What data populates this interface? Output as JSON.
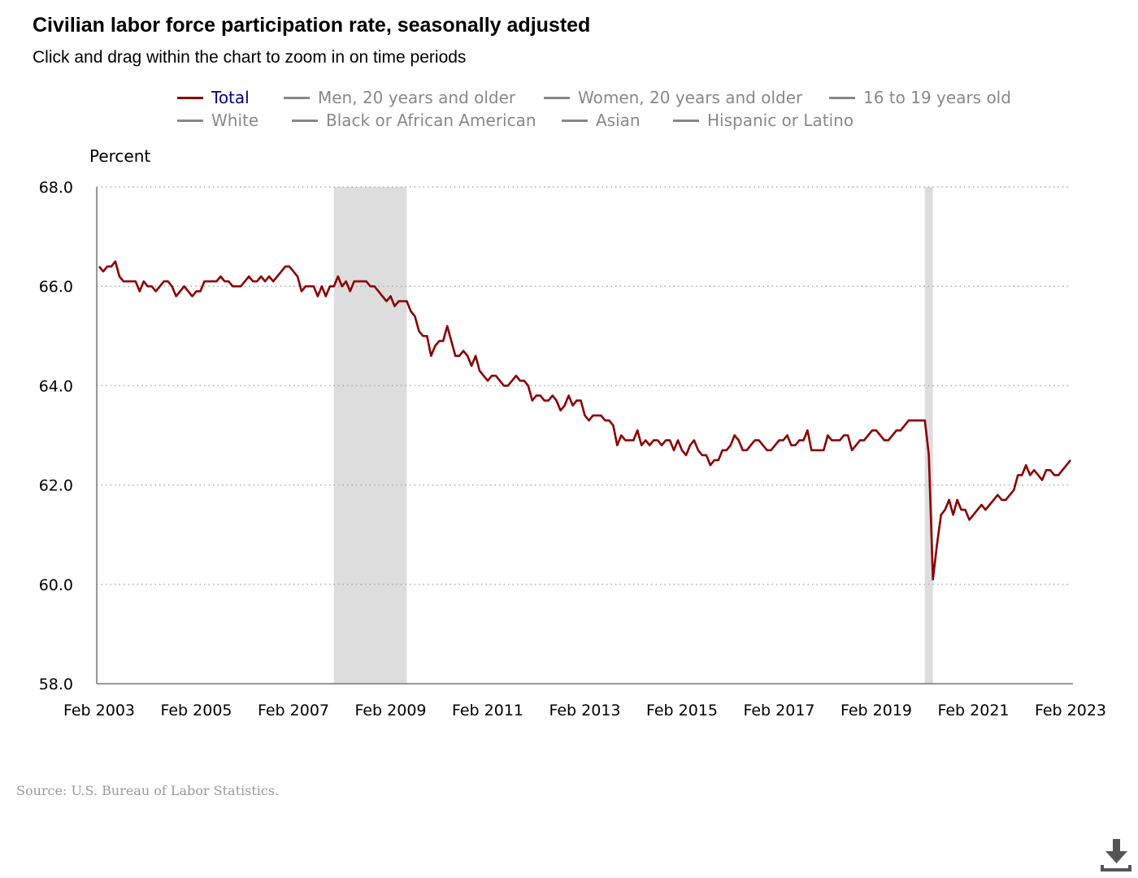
{
  "title": "Civilian labor force participation rate, seasonally adjusted",
  "subtitle": "Click and drag within the chart to zoom in on time periods",
  "legend": [
    {
      "label": "Total",
      "active": true
    },
    {
      "label": "Men, 20 years and older",
      "active": false
    },
    {
      "label": "Women, 20 years and older",
      "active": false
    },
    {
      "label": "16 to 19 years old",
      "active": false
    },
    {
      "label": "White",
      "active": false
    },
    {
      "label": "Black or African American",
      "active": false
    },
    {
      "label": "Asian",
      "active": false
    },
    {
      "label": "Hispanic or Latino",
      "active": false
    }
  ],
  "source": "Source: U.S. Bureau of Labor Statistics.",
  "download_icon": "download-icon",
  "colors": {
    "series": "#8b0000",
    "active_legend_text": "#000080",
    "inactive": "#888888",
    "recession": "#dddddd"
  },
  "chart_data": {
    "type": "line",
    "title": "Civilian labor force participation rate, seasonally adjusted",
    "ylabel": "Percent",
    "xlabel": "",
    "ylim": [
      58,
      68
    ],
    "yticks": [
      "68.0",
      "66.0",
      "64.0",
      "62.0",
      "60.0",
      "58.0"
    ],
    "xticks": [
      "Feb 2003",
      "Feb 2005",
      "Feb 2007",
      "Feb 2009",
      "Feb 2011",
      "Feb 2013",
      "Feb 2015",
      "Feb 2017",
      "Feb 2019",
      "Feb 2021",
      "Feb 2023"
    ],
    "grid": "horizontal dotted",
    "recessions": [
      [
        "2007-12",
        "2009-06"
      ],
      [
        "2020-02",
        "2020-04"
      ]
    ],
    "series": [
      {
        "name": "Total",
        "frequency": "monthly",
        "by_year": [
          {
            "year": 2003,
            "months": [
              null,
              66.4,
              66.3,
              66.4,
              66.4,
              66.5,
              66.2,
              66.1,
              66.1,
              66.1,
              66.1,
              65.9
            ]
          },
          {
            "year": 2004,
            "months": [
              66.1,
              66.0,
              66.0,
              65.9,
              66.0,
              66.1,
              66.1,
              66.0,
              65.8,
              65.9,
              66.0,
              65.9
            ]
          },
          {
            "year": 2005,
            "months": [
              65.8,
              65.9,
              65.9,
              66.1,
              66.1,
              66.1,
              66.1,
              66.2,
              66.1,
              66.1,
              66.0,
              66.0
            ]
          },
          {
            "year": 2006,
            "months": [
              66.0,
              66.1,
              66.2,
              66.1,
              66.1,
              66.2,
              66.1,
              66.2,
              66.1,
              66.2,
              66.3,
              66.4
            ]
          },
          {
            "year": 2007,
            "months": [
              66.4,
              66.3,
              66.2,
              65.9,
              66.0,
              66.0,
              66.0,
              65.8,
              66.0,
              65.8,
              66.0,
              66.0
            ]
          },
          {
            "year": 2008,
            "months": [
              66.2,
              66.0,
              66.1,
              65.9,
              66.1,
              66.1,
              66.1,
              66.1,
              66.0,
              66.0,
              65.9,
              65.8
            ]
          },
          {
            "year": 2009,
            "months": [
              65.7,
              65.8,
              65.6,
              65.7,
              65.7,
              65.7,
              65.5,
              65.4,
              65.1,
              65.0,
              65.0,
              64.6
            ]
          },
          {
            "year": 2010,
            "months": [
              64.8,
              64.9,
              64.9,
              65.2,
              64.9,
              64.6,
              64.6,
              64.7,
              64.6,
              64.4,
              64.6,
              64.3
            ]
          },
          {
            "year": 2011,
            "months": [
              64.2,
              64.1,
              64.2,
              64.2,
              64.1,
              64.0,
              64.0,
              64.1,
              64.2,
              64.1,
              64.1,
              64.0
            ]
          },
          {
            "year": 2012,
            "months": [
              63.7,
              63.8,
              63.8,
              63.7,
              63.7,
              63.8,
              63.7,
              63.5,
              63.6,
              63.8,
              63.6,
              63.7
            ]
          },
          {
            "year": 2013,
            "months": [
              63.7,
              63.4,
              63.3,
              63.4,
              63.4,
              63.4,
              63.3,
              63.3,
              63.2,
              62.8,
              63.0,
              62.9
            ]
          },
          {
            "year": 2014,
            "months": [
              62.9,
              62.9,
              63.1,
              62.8,
              62.9,
              62.8,
              62.9,
              62.9,
              62.8,
              62.9,
              62.9,
              62.7
            ]
          },
          {
            "year": 2015,
            "months": [
              62.9,
              62.7,
              62.6,
              62.8,
              62.9,
              62.7,
              62.6,
              62.6,
              62.4,
              62.5,
              62.5,
              62.7
            ]
          },
          {
            "year": 2016,
            "months": [
              62.7,
              62.8,
              63.0,
              62.9,
              62.7,
              62.7,
              62.8,
              62.9,
              62.9,
              62.8,
              62.7,
              62.7
            ]
          },
          {
            "year": 2017,
            "months": [
              62.8,
              62.9,
              62.9,
              63.0,
              62.8,
              62.8,
              62.9,
              62.9,
              63.1,
              62.7,
              62.7,
              62.7
            ]
          },
          {
            "year": 2018,
            "months": [
              62.7,
              63.0,
              62.9,
              62.9,
              62.9,
              63.0,
              63.0,
              62.7,
              62.8,
              62.9,
              62.9,
              63.0
            ]
          },
          {
            "year": 2019,
            "months": [
              63.1,
              63.1,
              63.0,
              62.9,
              62.9,
              63.0,
              63.1,
              63.1,
              63.2,
              63.3,
              63.3,
              63.3
            ]
          },
          {
            "year": 2020,
            "months": [
              63.3,
              63.3,
              62.6,
              60.1,
              60.8,
              61.4,
              61.5,
              61.7,
              61.4,
              61.7,
              61.5,
              61.5
            ]
          },
          {
            "year": 2021,
            "months": [
              61.3,
              61.4,
              61.5,
              61.6,
              61.5,
              61.6,
              61.7,
              61.8,
              61.7,
              61.7,
              61.8,
              61.9
            ]
          },
          {
            "year": 2022,
            "months": [
              62.2,
              62.2,
              62.4,
              62.2,
              62.3,
              62.2,
              62.1,
              62.3,
              62.3,
              62.2,
              62.2,
              62.3
            ]
          },
          {
            "year": 2023,
            "months": [
              62.4,
              62.5,
              null,
              null,
              null,
              null,
              null,
              null,
              null,
              null,
              null,
              null
            ]
          }
        ]
      }
    ]
  }
}
